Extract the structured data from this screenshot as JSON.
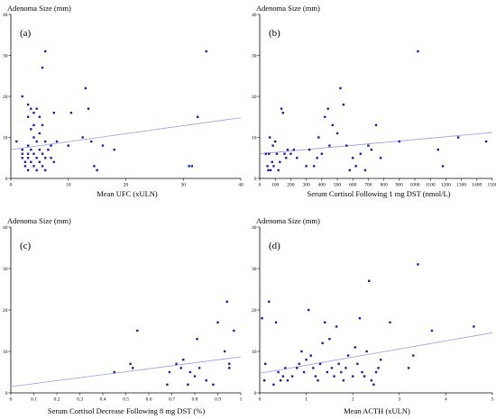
{
  "chart_data": [
    {
      "type": "scatter",
      "panel_label": "(a)",
      "xlabel": "Mean UFC (xULN)",
      "ylabel": "Adenoma Size (mm)",
      "xlim": [
        0,
        40
      ],
      "ylim": [
        0,
        40
      ],
      "xticks": [
        0,
        10,
        20,
        30,
        40
      ],
      "yticks": [
        0,
        10,
        20,
        30,
        40
      ],
      "trend": [
        [
          0,
          7
        ],
        [
          40,
          14.8
        ]
      ],
      "points": [
        [
          1,
          9
        ],
        [
          2,
          20
        ],
        [
          2,
          7
        ],
        [
          2,
          6
        ],
        [
          2,
          5
        ],
        [
          2.5,
          4
        ],
        [
          2.5,
          3
        ],
        [
          3,
          18
        ],
        [
          3,
          15
        ],
        [
          3,
          8
        ],
        [
          3,
          6
        ],
        [
          3,
          5
        ],
        [
          3,
          2
        ],
        [
          3.5,
          17
        ],
        [
          3.5,
          12
        ],
        [
          3.5,
          7
        ],
        [
          3.5,
          4
        ],
        [
          4,
          16
        ],
        [
          4,
          13
        ],
        [
          4,
          10
        ],
        [
          4,
          6
        ],
        [
          4,
          3
        ],
        [
          4.5,
          17
        ],
        [
          4.5,
          9
        ],
        [
          4.5,
          5
        ],
        [
          4.5,
          2
        ],
        [
          5,
          15
        ],
        [
          5,
          11
        ],
        [
          5,
          7
        ],
        [
          5,
          4
        ],
        [
          5.5,
          27
        ],
        [
          5.5,
          13
        ],
        [
          5.5,
          6
        ],
        [
          5.5,
          3
        ],
        [
          6,
          31
        ],
        [
          6,
          9
        ],
        [
          6,
          5
        ],
        [
          6,
          2
        ],
        [
          6.5,
          7
        ],
        [
          7,
          8
        ],
        [
          7,
          5
        ],
        [
          7.5,
          16
        ],
        [
          7.5,
          4
        ],
        [
          8,
          9
        ],
        [
          10,
          8
        ],
        [
          10.5,
          16
        ],
        [
          12.5,
          10
        ],
        [
          13,
          22
        ],
        [
          13.5,
          17
        ],
        [
          14,
          9
        ],
        [
          14.5,
          3
        ],
        [
          15,
          2
        ],
        [
          16,
          8
        ],
        [
          18,
          7
        ],
        [
          31,
          3
        ],
        [
          31.5,
          3
        ],
        [
          32.5,
          15
        ],
        [
          34,
          31
        ]
      ]
    },
    {
      "type": "scatter",
      "panel_label": "(b)",
      "xlabel": "Serum Cortisol Following 1 mg DST (nmol/L)",
      "ylabel": "Adenoma Size (mm)",
      "xlim": [
        0,
        1500
      ],
      "ylim": [
        0,
        40
      ],
      "xticks": [
        0,
        100,
        200,
        300,
        400,
        500,
        600,
        700,
        800,
        900,
        1000,
        1100,
        1200,
        1300,
        1400,
        1500
      ],
      "yticks": [
        0,
        10,
        20,
        30,
        40
      ],
      "trend": [
        [
          0,
          6
        ],
        [
          1500,
          11.2
        ]
      ],
      "points": [
        [
          40,
          6
        ],
        [
          50,
          3
        ],
        [
          55,
          2
        ],
        [
          60,
          6
        ],
        [
          65,
          10
        ],
        [
          70,
          2
        ],
        [
          80,
          4
        ],
        [
          85,
          8
        ],
        [
          90,
          3
        ],
        [
          100,
          9
        ],
        [
          110,
          6
        ],
        [
          120,
          2
        ],
        [
          130,
          4
        ],
        [
          140,
          17
        ],
        [
          150,
          16
        ],
        [
          160,
          6
        ],
        [
          170,
          5
        ],
        [
          180,
          7
        ],
        [
          200,
          6
        ],
        [
          220,
          7
        ],
        [
          240,
          5
        ],
        [
          300,
          3
        ],
        [
          320,
          7
        ],
        [
          350,
          3
        ],
        [
          370,
          5
        ],
        [
          380,
          10
        ],
        [
          400,
          6
        ],
        [
          420,
          15
        ],
        [
          440,
          17
        ],
        [
          450,
          8
        ],
        [
          470,
          13
        ],
        [
          500,
          11
        ],
        [
          520,
          22
        ],
        [
          540,
          18
        ],
        [
          560,
          8
        ],
        [
          580,
          2
        ],
        [
          600,
          5
        ],
        [
          620,
          3
        ],
        [
          650,
          6
        ],
        [
          680,
          2
        ],
        [
          700,
          8
        ],
        [
          720,
          7
        ],
        [
          750,
          13
        ],
        [
          780,
          5
        ],
        [
          900,
          9
        ],
        [
          1020,
          31
        ],
        [
          1150,
          7
        ],
        [
          1180,
          3
        ],
        [
          1280,
          10
        ],
        [
          1460,
          9
        ]
      ]
    },
    {
      "type": "scatter",
      "panel_label": "(c)",
      "xlabel": "Serum Cortisol Decrease Following 8 mg DST (%)",
      "ylabel": "Adenoma Size (mm)",
      "xlim": [
        0,
        1
      ],
      "ylim": [
        0,
        40
      ],
      "xticks": [
        0,
        0.1,
        0.2,
        0.3,
        0.4,
        0.5,
        0.6,
        0.7,
        0.8,
        0.9,
        1
      ],
      "yticks": [
        0,
        10,
        20,
        30,
        40
      ],
      "trend": [
        [
          0,
          1.5
        ],
        [
          1,
          8.7
        ]
      ],
      "points": [
        [
          0.45,
          5
        ],
        [
          0.52,
          7
        ],
        [
          0.53,
          6
        ],
        [
          0.55,
          15
        ],
        [
          0.68,
          2
        ],
        [
          0.69,
          5
        ],
        [
          0.72,
          7
        ],
        [
          0.74,
          6
        ],
        [
          0.75,
          8
        ],
        [
          0.77,
          2
        ],
        [
          0.78,
          5
        ],
        [
          0.8,
          4
        ],
        [
          0.81,
          13
        ],
        [
          0.82,
          6
        ],
        [
          0.85,
          3
        ],
        [
          0.88,
          2
        ],
        [
          0.9,
          17
        ],
        [
          0.93,
          10
        ],
        [
          0.94,
          22
        ],
        [
          0.95,
          7
        ],
        [
          0.95,
          6
        ],
        [
          0.97,
          15
        ]
      ]
    },
    {
      "type": "scatter",
      "panel_label": "(d)",
      "xlabel": "Mean ACTH (xULN)",
      "ylabel": "Adenoma Size (mm)",
      "xlim": [
        0,
        5
      ],
      "ylim": [
        0,
        40
      ],
      "xticks": [
        0,
        1,
        2,
        3,
        4,
        5
      ],
      "yticks": [
        0,
        10,
        20,
        30,
        40
      ],
      "trend": [
        [
          0,
          4.7
        ],
        [
          5,
          14.5
        ]
      ],
      "points": [
        [
          0.05,
          18
        ],
        [
          0.1,
          3
        ],
        [
          0.12,
          7
        ],
        [
          0.2,
          22
        ],
        [
          0.3,
          2
        ],
        [
          0.35,
          17
        ],
        [
          0.4,
          5
        ],
        [
          0.45,
          3
        ],
        [
          0.5,
          4
        ],
        [
          0.55,
          6
        ],
        [
          0.6,
          3
        ],
        [
          0.7,
          4
        ],
        [
          0.8,
          6
        ],
        [
          0.85,
          7
        ],
        [
          0.9,
          10
        ],
        [
          0.95,
          5
        ],
        [
          1,
          8
        ],
        [
          1.05,
          20
        ],
        [
          1.1,
          9
        ],
        [
          1.15,
          6
        ],
        [
          1.2,
          4
        ],
        [
          1.25,
          3
        ],
        [
          1.3,
          7
        ],
        [
          1.35,
          12
        ],
        [
          1.4,
          17
        ],
        [
          1.45,
          5
        ],
        [
          1.5,
          13
        ],
        [
          1.55,
          6
        ],
        [
          1.6,
          4
        ],
        [
          1.65,
          16
        ],
        [
          1.7,
          7
        ],
        [
          1.75,
          5
        ],
        [
          1.8,
          3
        ],
        [
          1.85,
          6
        ],
        [
          1.9,
          9
        ],
        [
          2,
          4
        ],
        [
          2.05,
          11
        ],
        [
          2.1,
          7
        ],
        [
          2.15,
          18
        ],
        [
          2.2,
          5
        ],
        [
          2.25,
          4
        ],
        [
          2.3,
          10
        ],
        [
          2.35,
          27
        ],
        [
          2.4,
          3
        ],
        [
          2.45,
          2
        ],
        [
          2.5,
          5
        ],
        [
          2.55,
          6
        ],
        [
          2.8,
          17
        ],
        [
          3.2,
          6
        ],
        [
          3.3,
          9
        ],
        [
          3.4,
          31
        ],
        [
          3.7,
          15
        ],
        [
          4.6,
          16
        ],
        [
          2.6,
          8
        ]
      ]
    }
  ]
}
